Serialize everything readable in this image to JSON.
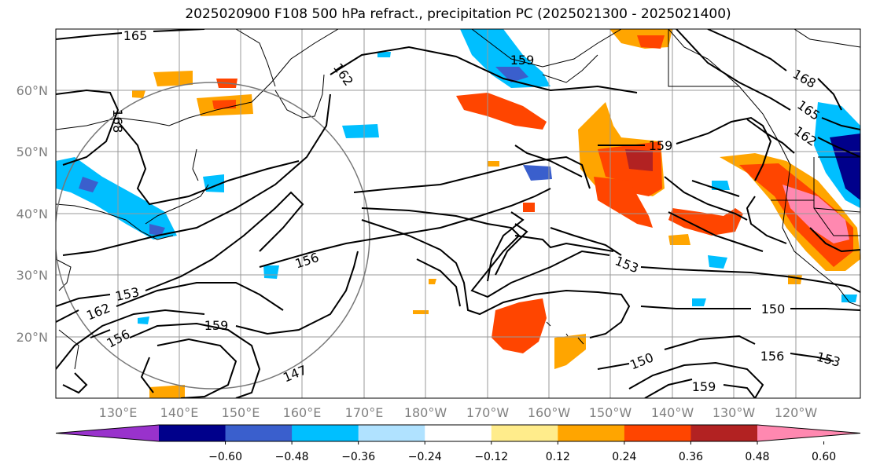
{
  "title": "2025020900 F108 500 hPa refract., precipitation PC (2025021300 - 2025021400)",
  "lon_labels": [
    "130°E",
    "140°E",
    "150°E",
    "160°E",
    "170°E",
    "180°W",
    "170°W",
    "160°W",
    "150°W",
    "140°W",
    "130°W",
    "120°W"
  ],
  "lat_labels": [
    "60°N",
    "50°N",
    "40°N",
    "30°N",
    "20°N"
  ],
  "contour_labels": [
    "165",
    "162",
    "168",
    "159",
    "153",
    "165",
    "162",
    "168",
    "159",
    "156",
    "153",
    "150",
    "156",
    "153",
    "162",
    "156",
    "159",
    "147",
    "150",
    "159"
  ],
  "colorbar": {
    "ticks": [
      "−0.60",
      "−0.48",
      "−0.36",
      "−0.24",
      "−0.12",
      "0.12",
      "0.24",
      "0.36",
      "0.48",
      "0.60"
    ],
    "colors": [
      "#9932cc",
      "#00008b",
      "#3a5fcd",
      "#00bfff",
      "#b0e2ff",
      "#ffffff",
      "#ffec8b",
      "#ffa500",
      "#ff4500",
      "#b22222",
      "#ff88b0"
    ]
  }
}
